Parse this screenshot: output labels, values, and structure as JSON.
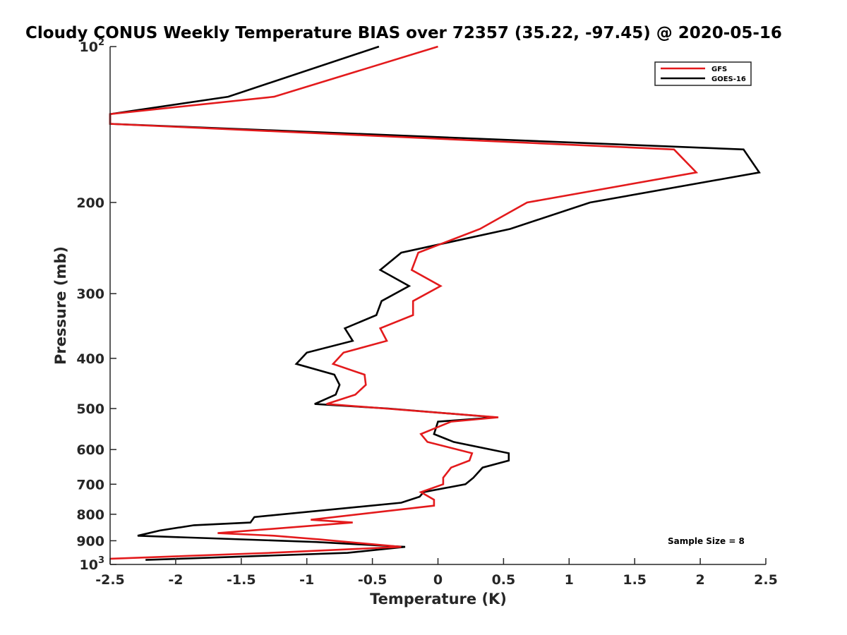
{
  "chart_data": {
    "type": "line",
    "title": "Cloudy CONUS Weekly Temperature BIAS over 72357 (35.22, -97.45) @ 2020-05-16",
    "xlabel": "Temperature (K)",
    "ylabel": "Pressure (mb)",
    "xlim": [
      -2.5,
      2.5
    ],
    "ylim": [
      1000,
      100
    ],
    "y_scale": "log",
    "y_reversed": true,
    "grid": false,
    "legend_position": "top-right",
    "x_ticks": [
      -2.5,
      -2,
      -1.5,
      -1,
      -0.5,
      0,
      0.5,
      1,
      1.5,
      2,
      2.5
    ],
    "x_tick_labels": [
      "-2.5",
      "-2",
      "-1.5",
      "-1",
      "-0.5",
      "0",
      "0.5",
      "1",
      "1.5",
      "2",
      "2.5"
    ],
    "y_ticks": [
      100,
      200,
      300,
      400,
      500,
      600,
      700,
      800,
      900,
      1000
    ],
    "y_tick_labels": [
      {
        "base": "10",
        "exp": "2"
      },
      {
        "base": "200",
        "exp": ""
      },
      {
        "base": "300",
        "exp": ""
      },
      {
        "base": "400",
        "exp": ""
      },
      {
        "base": "500",
        "exp": ""
      },
      {
        "base": "600",
        "exp": ""
      },
      {
        "base": "700",
        "exp": ""
      },
      {
        "base": "800",
        "exp": ""
      },
      {
        "base": "900",
        "exp": ""
      },
      {
        "base": "10",
        "exp": "3"
      }
    ],
    "annotation": "Sample Size = 8",
    "series": [
      {
        "name": "GFS",
        "color": "#e31a1c",
        "points": [
          [
            0.0,
            100
          ],
          [
            -1.25,
            125
          ],
          [
            -2.5,
            135
          ],
          [
            -2.5,
            141
          ],
          [
            1.8,
            158
          ],
          [
            1.97,
            175
          ],
          [
            0.68,
            200
          ],
          [
            0.32,
            225
          ],
          [
            -0.15,
            250
          ],
          [
            -0.2,
            270
          ],
          [
            0.02,
            290
          ],
          [
            -0.19,
            310
          ],
          [
            -0.19,
            330
          ],
          [
            -0.44,
            350
          ],
          [
            -0.39,
            370
          ],
          [
            -0.72,
            390
          ],
          [
            -0.8,
            410
          ],
          [
            -0.56,
            430
          ],
          [
            -0.55,
            450
          ],
          [
            -0.63,
            470
          ],
          [
            -0.85,
            490
          ],
          [
            -0.4,
            500
          ],
          [
            0.46,
            520
          ],
          [
            0.1,
            530
          ],
          [
            -0.13,
            560
          ],
          [
            -0.08,
            580
          ],
          [
            0.26,
            610
          ],
          [
            0.24,
            630
          ],
          [
            0.1,
            650
          ],
          [
            0.04,
            680
          ],
          [
            0.04,
            700
          ],
          [
            -0.13,
            725
          ],
          [
            -0.03,
            750
          ],
          [
            -0.03,
            770
          ],
          [
            -0.97,
            820
          ],
          [
            -0.65,
            830
          ],
          [
            -1.68,
            870
          ],
          [
            -1.25,
            880
          ],
          [
            -0.9,
            895
          ],
          [
            -0.28,
            925
          ],
          [
            -1.28,
            950
          ],
          [
            -2.5,
            975
          ]
        ]
      },
      {
        "name": "GOES-16",
        "color": "#000000",
        "points": [
          [
            -0.45,
            100
          ],
          [
            -1.6,
            125
          ],
          [
            -2.5,
            135
          ],
          [
            -2.5,
            141
          ],
          [
            2.33,
            158
          ],
          [
            2.45,
            175
          ],
          [
            1.16,
            200
          ],
          [
            0.55,
            225
          ],
          [
            -0.28,
            250
          ],
          [
            -0.44,
            270
          ],
          [
            -0.22,
            290
          ],
          [
            -0.43,
            310
          ],
          [
            -0.47,
            330
          ],
          [
            -0.71,
            350
          ],
          [
            -0.65,
            370
          ],
          [
            -1.0,
            390
          ],
          [
            -1.08,
            410
          ],
          [
            -0.79,
            430
          ],
          [
            -0.75,
            450
          ],
          [
            -0.78,
            470
          ],
          [
            -0.94,
            490
          ],
          [
            -0.38,
            500
          ],
          [
            0.44,
            520
          ],
          [
            0.0,
            530
          ],
          [
            -0.03,
            560
          ],
          [
            0.12,
            580
          ],
          [
            0.54,
            610
          ],
          [
            0.54,
            630
          ],
          [
            0.34,
            650
          ],
          [
            0.27,
            680
          ],
          [
            0.21,
            700
          ],
          [
            -0.11,
            725
          ],
          [
            -0.14,
            740
          ],
          [
            -0.28,
            760
          ],
          [
            -1.4,
            810
          ],
          [
            -1.43,
            830
          ],
          [
            -1.86,
            840
          ],
          [
            -2.12,
            860
          ],
          [
            -2.29,
            880
          ],
          [
            -0.93,
            905
          ],
          [
            -0.25,
            925
          ],
          [
            -0.69,
            950
          ],
          [
            -2.23,
            980
          ]
        ]
      }
    ]
  }
}
